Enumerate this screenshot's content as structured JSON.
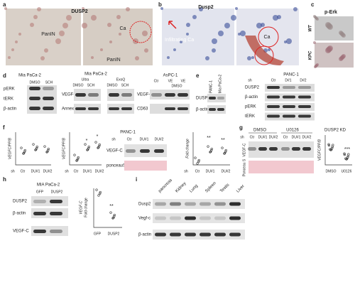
{
  "a": {
    "letter": "a",
    "title": "DUSP2",
    "label1": "PanIN",
    "label2": "PanIN",
    "label3": "Ca"
  },
  "b": {
    "letter": "b",
    "title": "Dusp2",
    "label1": "Infiltrating Ca",
    "label2": "Ca"
  },
  "c": {
    "letter": "c",
    "title": "p-Erk",
    "rows": [
      "WT",
      "KPC"
    ]
  },
  "d": {
    "letter": "d",
    "blot1": {
      "title": "Mia PaCa-2",
      "lanes": [
        "DMSO",
        "SCH"
      ],
      "rows": [
        "pERK",
        "tERK",
        "β-actin"
      ]
    },
    "blot2": {
      "title": "Mia PaCa-2",
      "groups": [
        "Ultra",
        "ExoQ"
      ],
      "lanes": [
        "DMSO",
        "SCH",
        "DMSO",
        "SCH"
      ],
      "rows": [
        "VEGF-C",
        "AnnexinV"
      ]
    },
    "blot3": {
      "title": "AsPC-1",
      "lanes": [
        "Ctr",
        "VE",
        "VE"
      ],
      "treatment": "DMSO",
      "rows": [
        "VEGF-C",
        "CD63"
      ]
    }
  },
  "e": {
    "letter": "e",
    "blot1": {
      "lanes": [
        "PANC-1",
        "Mia PaCa-2"
      ],
      "rows": [
        "DUSP2",
        "β-actin"
      ]
    },
    "blot2": {
      "title": "PANC-1",
      "lanes": [
        "sh",
        "Ctr",
        "D#1",
        "D#2"
      ],
      "rows": [
        "DUSP2",
        "β-actin",
        "pERK",
        "tERK"
      ]
    }
  },
  "f": {
    "letter": "f",
    "plot1": {
      "ylabel": "VEGFC/PPIB",
      "xlabels": [
        "sh",
        "Ctr",
        "DU#1",
        "DU#2"
      ]
    },
    "plot2": {
      "ylabel": "VEGFC/PPIB",
      "xlabels": [
        "sh",
        "Ctr",
        "DU#1",
        "DU#2"
      ],
      "marks": [
        "*",
        "*"
      ]
    },
    "blot": {
      "title": "PANC-1",
      "lanes": [
        "sh",
        "Ctr",
        "DU#1",
        "DU#2"
      ],
      "rows": [
        "VEGF-C",
        "ponceauS"
      ]
    },
    "plot3": {
      "ylabel": "Fold change",
      "xlabels": [
        "sh",
        "Ctr",
        "DU#1",
        "DU#2"
      ],
      "marks": [
        "**",
        "**"
      ]
    }
  },
  "g": {
    "letter": "g",
    "groups": [
      "DMSO",
      "U0126"
    ],
    "lanes": [
      "sh",
      "Ctr",
      "DU#1",
      "DU#2",
      "Ctr",
      "DU#1",
      "DU#2"
    ],
    "rows": [
      "VEGF-C",
      "Ponceau S"
    ],
    "plot": {
      "title": "DUSP2 KD",
      "ylabel": "VEGFC/PPIB",
      "xlabels": [
        "DMSO",
        "U0126"
      ],
      "marks": [
        "***"
      ]
    }
  },
  "h": {
    "letter": "h",
    "blot": {
      "title": "MIA PaCa-2",
      "lanes": [
        "GFP",
        "DUSP2"
      ],
      "rows": [
        "DUSP2",
        "β-actin",
        "VEGF-C"
      ]
    },
    "plot": {
      "ylabel": [
        "VEGF-C",
        "Fold change"
      ],
      "xlabels": [
        "GFP",
        "DUSP2"
      ],
      "marks": [
        "**"
      ]
    }
  },
  "i": {
    "letter": "i",
    "lanes": [
      "pancreas",
      "Kidney",
      "Lung",
      "Spleen",
      "Testis",
      "Liver"
    ],
    "rows": [
      "Dusp2",
      "Vegf-c",
      "β-actin"
    ]
  }
}
